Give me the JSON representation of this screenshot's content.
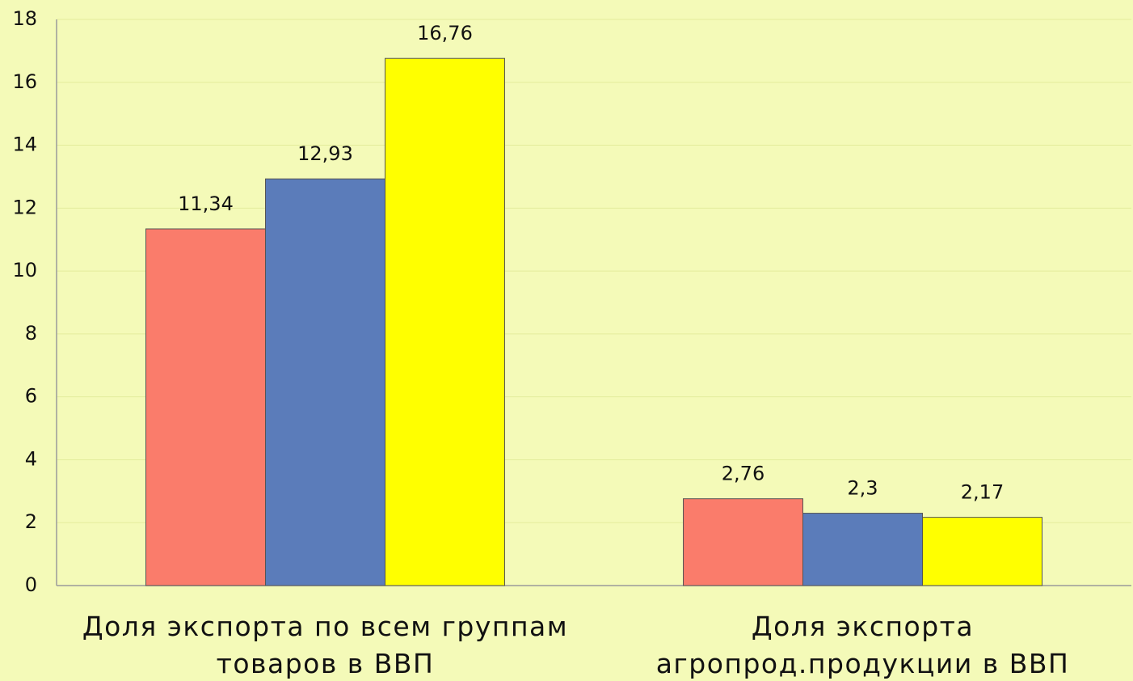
{
  "chart_data": {
    "type": "bar",
    "categories": [
      [
        "Доля экспорта по всем группам",
        "товаров в ВВП"
      ],
      [
        "Доля экспорта",
        "агропрод.продукции в ВВП"
      ]
    ],
    "series": [
      {
        "color": "#fa7c6b",
        "values": [
          11.34,
          2.76
        ],
        "value_labels": [
          "11,34",
          "2,76"
        ]
      },
      {
        "color": "#5b7cba",
        "values": [
          12.93,
          2.3
        ],
        "value_labels": [
          "12,93",
          "2,3"
        ]
      },
      {
        "color": "#ffff00",
        "values": [
          16.76,
          2.17
        ],
        "value_labels": [
          "16,76",
          "2,17"
        ]
      }
    ],
    "ylim": [
      0,
      18
    ],
    "yticks": [
      0,
      2,
      4,
      6,
      8,
      10,
      12,
      14,
      16,
      18
    ],
    "grid": true
  }
}
